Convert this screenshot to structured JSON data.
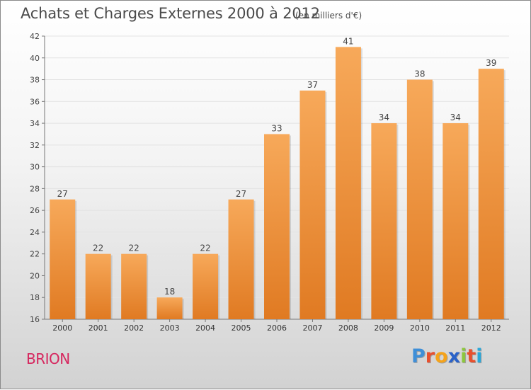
{
  "title": "Achats et Charges Externes 2000 à 2012",
  "subtitle": "(en milliers d'€)",
  "commune": "BRION",
  "logo": {
    "text": "Proxiti",
    "letter_colors": [
      "#3f8fd8",
      "#e8502e",
      "#f5a31a",
      "#2a62c8",
      "#8dc63f",
      "#e8502e",
      "#2aa7d8"
    ]
  },
  "colors": {
    "bar_light": "#f7a95a",
    "bar_dark": "#e07a22",
    "title": "#4a4a4a",
    "commune": "#d6265e"
  },
  "chart_data": {
    "type": "bar",
    "title": "Achats et Charges Externes 2000 à 2012",
    "subtitle": "(en milliers d'€)",
    "categories": [
      "2000",
      "2001",
      "2002",
      "2003",
      "2004",
      "2005",
      "2006",
      "2007",
      "2008",
      "2009",
      "2010",
      "2011",
      "2012"
    ],
    "values": [
      27,
      22,
      22,
      18,
      22,
      27,
      33,
      37,
      41,
      34,
      38,
      34,
      39
    ],
    "ylim": [
      16,
      42
    ],
    "yticks": [
      16,
      18,
      20,
      22,
      24,
      26,
      28,
      30,
      32,
      34,
      36,
      38,
      40,
      42
    ],
    "grid": true,
    "data_labels": true
  }
}
